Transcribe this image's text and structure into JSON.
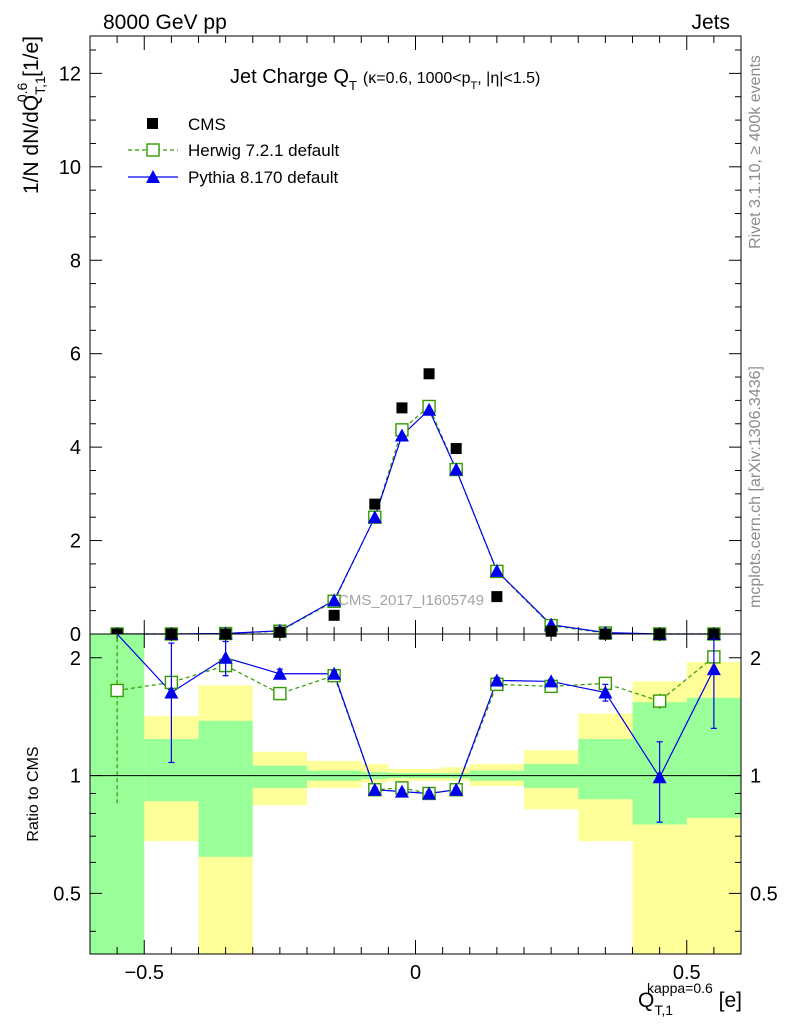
{
  "header": {
    "left": "8000 GeV pp",
    "right": "Jets"
  },
  "side_labels": {
    "rivet": "Rivet 3.1.10, ≥ 400k events",
    "mcplots": "mcplots.cern.ch [arXiv:1306.3436]"
  },
  "watermark": "CMS_2017_I1605749",
  "legend_location": "top-left",
  "colors": {
    "data": "#000000",
    "herwig": "#339900",
    "pythia": "#0000ee",
    "band_inner": "#99ff99",
    "band_outer": "#ffff99"
  },
  "chart_data": [
    {
      "type": "scatter",
      "title": "Jet Charge Q_T (κ=0.6, 1000<p_T, |η|<1.5)",
      "title_main": "Jet Charge Q",
      "title_main_sub": "T",
      "title_paren_a": "(κ=0.6, 1000<p",
      "title_paren_sub": "T",
      "title_paren_b": ", |η|<1.5)",
      "ylabel": "1/N dN/dQ^0.6_T,1 [1/e]",
      "ylabel_a": "1/N dN/dQ",
      "ylabel_sub": "T,1",
      "ylabel_sup": "0.6",
      "ylabel_b": " [1/e]",
      "xlim": [
        -0.6,
        0.6
      ],
      "ylim": [
        0,
        12.8
      ],
      "yticks": [
        0,
        2,
        4,
        6,
        8,
        10,
        12
      ],
      "ytick_labels": [
        "0",
        "2",
        "4",
        "6",
        "8",
        "10",
        "12"
      ],
      "x_edges": [
        -0.6,
        -0.5,
        -0.4,
        -0.3,
        -0.2,
        -0.1,
        -0.05,
        0,
        0.05,
        0.1,
        0.2,
        0.3,
        0.4,
        0.5,
        0.6
      ],
      "x": [
        -0.55,
        -0.45,
        -0.35,
        -0.25,
        -0.15,
        -0.075,
        -0.025,
        0.025,
        0.075,
        0.15,
        0.25,
        0.35,
        0.45,
        0.55
      ],
      "series": [
        {
          "name": "CMS",
          "marker": "filled-square",
          "values": [
            0.0,
            0.0,
            0.0,
            0.04,
            0.4,
            2.78,
            4.84,
            5.57,
            3.97,
            0.8,
            0.06,
            0.0,
            0.0,
            0.0
          ]
        },
        {
          "name": "Herwig 7.2.1 default",
          "marker": "open-square",
          "line": "dashed",
          "values": [
            0.0,
            0.0,
            0.01,
            0.06,
            0.7,
            2.5,
            4.37,
            4.87,
            3.52,
            1.34,
            0.18,
            0.02,
            0.0,
            0.0
          ]
        },
        {
          "name": "Pythia 8.170 default",
          "marker": "filled-triangle",
          "line": "solid",
          "values": [
            0.0,
            0.0,
            0.01,
            0.07,
            0.72,
            2.5,
            4.25,
            4.8,
            3.52,
            1.35,
            0.2,
            0.03,
            0.0,
            0.0
          ]
        }
      ]
    },
    {
      "type": "line",
      "ylabel": "Ratio to CMS",
      "xlabel": "Q^kappa=0.6_T,1 [e]",
      "xlabel_a": "Q",
      "xlabel_sub": "T,1",
      "xlabel_sup": "kappa=0.6",
      "xlabel_b": " [e]",
      "xlim": [
        -0.6,
        0.6
      ],
      "ylim": [
        0.35,
        2.3
      ],
      "scale": "log",
      "yticks": [
        0.5,
        1,
        2
      ],
      "ytick_labels": [
        "0.5",
        "1",
        "2"
      ],
      "xticks": [
        -0.5,
        0,
        0.5
      ],
      "xtick_labels": [
        "−0.5",
        "0",
        "0.5"
      ],
      "reference": 1,
      "band_inner": {
        "low": [
          0.3,
          0.86,
          0.62,
          0.93,
          0.97,
          0.98,
          0.985,
          0.985,
          0.985,
          0.97,
          0.93,
          0.87,
          0.75,
          0.78
        ],
        "high": [
          3.0,
          1.24,
          1.38,
          1.06,
          1.03,
          1.02,
          1.015,
          1.015,
          1.015,
          1.03,
          1.07,
          1.24,
          1.54,
          1.58
        ]
      },
      "band_outer": {
        "low": [
          0.3,
          0.68,
          0.3,
          0.84,
          0.93,
          0.96,
          0.97,
          0.97,
          0.97,
          0.94,
          0.82,
          0.68,
          0.3,
          0.3
        ],
        "high": [
          3.0,
          1.42,
          1.7,
          1.15,
          1.09,
          1.07,
          1.04,
          1.04,
          1.05,
          1.07,
          1.16,
          1.44,
          1.74,
          1.95
        ]
      },
      "series": [
        {
          "name": "Herwig 7.2.1 default",
          "values": [
            1.65,
            1.73,
            1.91,
            1.62,
            1.8,
            0.92,
            0.93,
            0.9,
            0.92,
            1.71,
            1.69,
            1.72,
            1.55,
            2.01
          ],
          "err": [
            0.8,
            0.03,
            0.12,
            0.03,
            0.04,
            0.01,
            0.01,
            0.01,
            0.01,
            0.04,
            0.03,
            0.03,
            0.07,
            0.0
          ]
        },
        {
          "name": "Pythia 8.170 default",
          "values": [
            3.0,
            1.63,
            2.0,
            1.82,
            1.82,
            0.92,
            0.91,
            0.9,
            0.92,
            1.75,
            1.74,
            1.63,
            0.99,
            1.87
          ],
          "err": [
            0.0,
            0.55,
            0.2,
            0.05,
            0.03,
            0.01,
            0.01,
            0.01,
            0.01,
            0.03,
            0.02,
            0.08,
            0.23,
            0.55
          ]
        }
      ]
    }
  ]
}
